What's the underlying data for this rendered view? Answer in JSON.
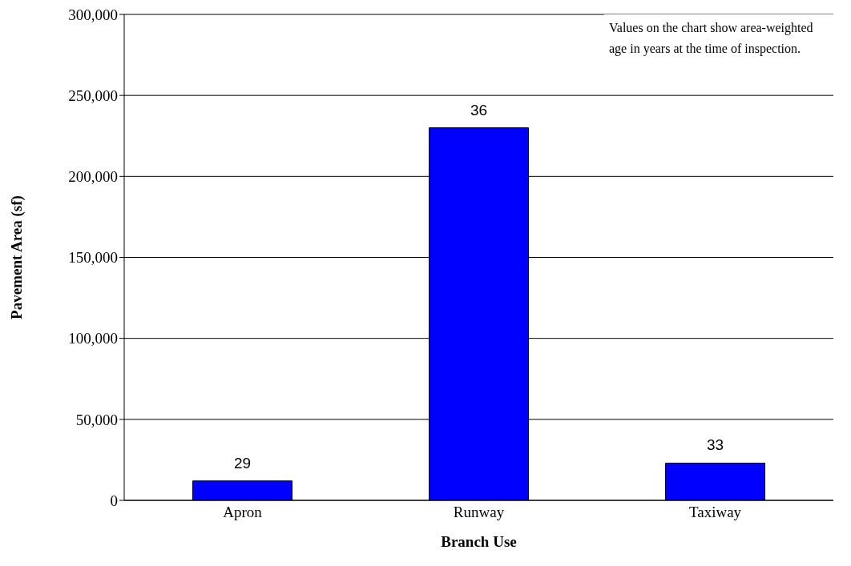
{
  "chart_data": {
    "type": "bar",
    "xlabel": "Branch Use",
    "ylabel": "Pavement Area (sf)",
    "categories": [
      "Apron",
      "Runway",
      "Taxiway"
    ],
    "values": [
      12000,
      230000,
      23000
    ],
    "color": "#0000ff",
    "ylim": [
      0,
      300000
    ],
    "yticks": [
      {
        "value": 0,
        "label": "0"
      },
      {
        "value": 50000,
        "label": "50,000"
      },
      {
        "value": 100000,
        "label": "100,000"
      },
      {
        "value": 150000,
        "label": "150,000"
      },
      {
        "value": 200000,
        "label": "200,000"
      },
      {
        "value": 250000,
        "label": "250,000"
      },
      {
        "value": 300000,
        "label": "300,000"
      }
    ],
    "grid": "y",
    "annotations": [
      "Values on the chart show area-weighted age in years at the time of inspection.",
      {
        "text": "29",
        "x": "Apron",
        "y": 12000
      },
      {
        "text": "36",
        "x": "Runway",
        "y": 230000
      },
      {
        "text": "33",
        "x": "Taxiway",
        "y": 23000
      }
    ]
  }
}
